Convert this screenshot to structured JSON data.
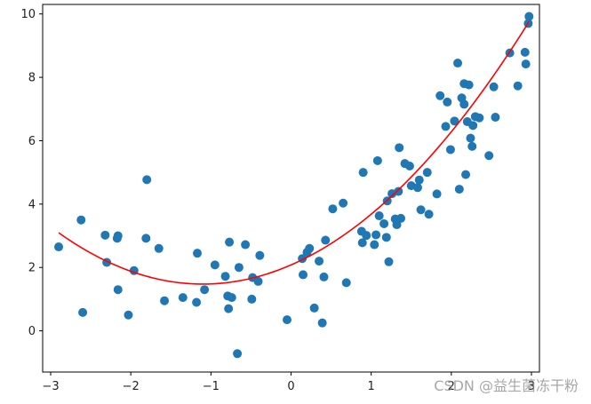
{
  "chart_data": {
    "type": "scatter",
    "title": "",
    "xlabel": "",
    "ylabel": "",
    "xlim": [
      -3.1,
      3.1
    ],
    "ylim": [
      -1.3,
      10.3
    ],
    "xticks": [
      -3,
      -2,
      -1,
      0,
      1,
      2,
      3
    ],
    "xtick_labels": [
      "−3",
      "−2",
      "−1",
      "0",
      "1",
      "2",
      "3"
    ],
    "yticks": [
      0,
      2,
      4,
      6,
      8,
      10
    ],
    "ytick_labels": [
      "0",
      "2",
      "4",
      "6",
      "8",
      "10"
    ],
    "grid": false,
    "colors": {
      "points": "#1f77b4",
      "fit_line": "#ff0000",
      "axes": "#000000"
    },
    "series": [
      {
        "kind": "scatter",
        "points": [
          [
            -2.9,
            2.65
          ],
          [
            -2.62,
            3.5
          ],
          [
            -2.6,
            0.58
          ],
          [
            -2.32,
            3.02
          ],
          [
            -2.3,
            2.16
          ],
          [
            -2.17,
            2.92
          ],
          [
            -2.16,
            3.0
          ],
          [
            -2.16,
            1.3
          ],
          [
            -2.03,
            0.5
          ],
          [
            -1.96,
            1.9
          ],
          [
            -1.8,
            4.77
          ],
          [
            -1.81,
            2.92
          ],
          [
            -1.65,
            2.6
          ],
          [
            -1.58,
            0.95
          ],
          [
            -1.35,
            1.05
          ],
          [
            -1.17,
            2.45
          ],
          [
            -1.18,
            0.9
          ],
          [
            -1.08,
            1.3
          ],
          [
            -0.95,
            2.08
          ],
          [
            -0.82,
            1.72
          ],
          [
            -0.79,
            1.1
          ],
          [
            -0.78,
            0.7
          ],
          [
            -0.77,
            2.8
          ],
          [
            -0.74,
            1.05
          ],
          [
            -0.67,
            -0.72
          ],
          [
            -0.65,
            2.0
          ],
          [
            -0.57,
            2.72
          ],
          [
            -0.49,
            1.0
          ],
          [
            -0.48,
            1.68
          ],
          [
            -0.41,
            1.56
          ],
          [
            -0.39,
            2.38
          ],
          [
            -0.05,
            0.35
          ],
          [
            0.14,
            2.28
          ],
          [
            0.15,
            1.77
          ],
          [
            0.2,
            2.48
          ],
          [
            0.23,
            2.6
          ],
          [
            0.29,
            0.72
          ],
          [
            0.35,
            2.2
          ],
          [
            0.39,
            0.25
          ],
          [
            0.41,
            1.7
          ],
          [
            0.43,
            2.86
          ],
          [
            0.52,
            3.85
          ],
          [
            0.65,
            4.03
          ],
          [
            0.69,
            1.52
          ],
          [
            0.88,
            3.14
          ],
          [
            0.89,
            2.78
          ],
          [
            0.9,
            5.0
          ],
          [
            0.94,
            3.01
          ],
          [
            1.04,
            2.72
          ],
          [
            1.06,
            3.03
          ],
          [
            1.08,
            5.37
          ],
          [
            1.1,
            3.63
          ],
          [
            1.16,
            3.38
          ],
          [
            1.19,
            2.95
          ],
          [
            1.2,
            4.1
          ],
          [
            1.22,
            2.18
          ],
          [
            1.26,
            4.33
          ],
          [
            1.3,
            3.53
          ],
          [
            1.32,
            3.35
          ],
          [
            1.34,
            4.4
          ],
          [
            1.35,
            5.78
          ],
          [
            1.37,
            3.55
          ],
          [
            1.42,
            5.28
          ],
          [
            1.48,
            5.2
          ],
          [
            1.5,
            4.58
          ],
          [
            1.58,
            4.52
          ],
          [
            1.6,
            4.76
          ],
          [
            1.62,
            3.82
          ],
          [
            1.7,
            5.0
          ],
          [
            1.72,
            3.68
          ],
          [
            1.82,
            4.32
          ],
          [
            1.86,
            7.42
          ],
          [
            1.93,
            6.45
          ],
          [
            1.95,
            7.22
          ],
          [
            1.99,
            5.72
          ],
          [
            2.04,
            6.62
          ],
          [
            2.08,
            8.45
          ],
          [
            2.1,
            4.47
          ],
          [
            2.13,
            7.35
          ],
          [
            2.16,
            7.15
          ],
          [
            2.16,
            7.8
          ],
          [
            2.18,
            4.93
          ],
          [
            2.2,
            6.6
          ],
          [
            2.22,
            7.76
          ],
          [
            2.24,
            6.08
          ],
          [
            2.26,
            5.82
          ],
          [
            2.27,
            6.48
          ],
          [
            2.3,
            6.76
          ],
          [
            2.35,
            6.72
          ],
          [
            2.47,
            5.53
          ],
          [
            2.53,
            7.7
          ],
          [
            2.55,
            6.74
          ],
          [
            2.73,
            8.77
          ],
          [
            2.83,
            7.73
          ],
          [
            2.92,
            8.79
          ],
          [
            2.93,
            8.42
          ],
          [
            2.96,
            9.7
          ],
          [
            2.97,
            9.92
          ]
        ]
      },
      {
        "kind": "line",
        "fit": "quadratic",
        "coefficients": {
          "a": 0.5,
          "b": 1.1,
          "c": 2.08
        },
        "x_range": [
          -2.9,
          2.97
        ]
      }
    ]
  },
  "watermark": "CSDN @益生菌冻干粉"
}
